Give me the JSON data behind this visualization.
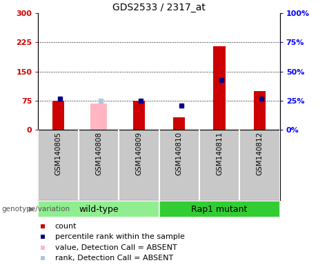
{
  "title": "GDS2533 / 2317_at",
  "samples": [
    "GSM140805",
    "GSM140808",
    "GSM140809",
    "GSM140810",
    "GSM140811",
    "GSM140812"
  ],
  "count_values": [
    75,
    null,
    75,
    33,
    215,
    100
  ],
  "count_absent": [
    null,
    68,
    null,
    null,
    null,
    null
  ],
  "rank_values": [
    27,
    null,
    25,
    21,
    43,
    27
  ],
  "rank_absent": [
    null,
    25,
    null,
    null,
    null,
    null
  ],
  "ylim_left": [
    0,
    300
  ],
  "ylim_right": [
    0,
    100
  ],
  "yticks_left": [
    0,
    75,
    150,
    225,
    300
  ],
  "yticks_right": [
    0,
    25,
    50,
    75,
    100
  ],
  "ytick_labels_left": [
    "0",
    "75",
    "150",
    "225",
    "300"
  ],
  "ytick_labels_right": [
    "0",
    "25",
    "50",
    "75",
    "100"
  ],
  "hlines": [
    75,
    150,
    225
  ],
  "groups": [
    {
      "label": "wild-type",
      "indices": [
        0,
        1,
        2
      ],
      "color": "#90ee90"
    },
    {
      "label": "Rap1 mutant",
      "indices": [
        3,
        4,
        5
      ],
      "color": "#32cd32"
    }
  ],
  "bar_color_present": "#cc0000",
  "bar_color_absent": "#ffb6c1",
  "square_color_present": "#00008b",
  "square_color_absent": "#b0c4de",
  "bar_width": 0.3,
  "axis_bg": "#ffffff",
  "xlabel_area_color": "#c8c8c8",
  "genotype_label": "genotype/variation",
  "title_fontsize": 10,
  "tick_fontsize": 8,
  "label_fontsize": 8,
  "group_label_fontsize": 9,
  "legend_items": [
    {
      "label": "count",
      "color": "#cc0000"
    },
    {
      "label": "percentile rank within the sample",
      "color": "#00008b"
    },
    {
      "label": "value, Detection Call = ABSENT",
      "color": "#ffb6c1"
    },
    {
      "label": "rank, Detection Call = ABSENT",
      "color": "#b0c4de"
    }
  ]
}
